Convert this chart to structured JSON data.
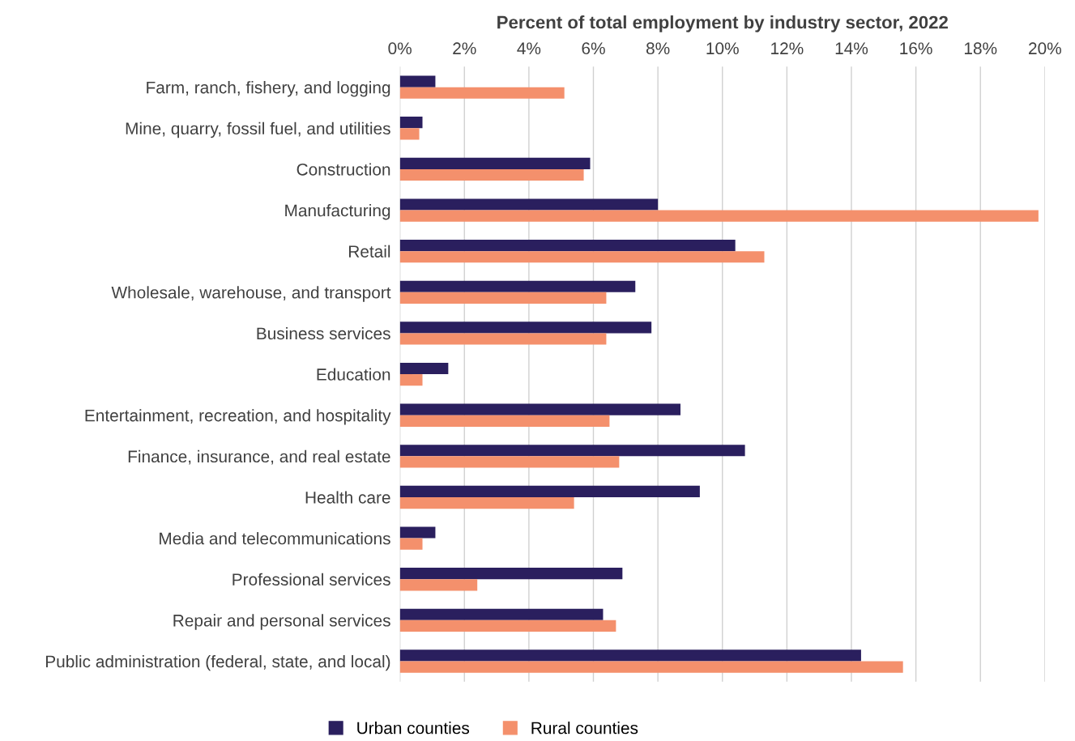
{
  "chart_data": {
    "type": "bar",
    "orientation": "horizontal",
    "xlabel": "Percent of total employment by industry sector, 2022",
    "categories": [
      "Farm, ranch, fishery, and logging",
      "Mine, quarry, fossil fuel, and utilities",
      "Construction",
      "Manufacturing",
      "Retail",
      "Wholesale, warehouse, and transport",
      "Business services",
      "Education",
      "Entertainment, recreation, and hospitality",
      "Finance, insurance, and real estate",
      "Health care",
      "Media and telecommunications",
      "Professional services",
      "Repair and personal services",
      "Public administration (federal, state, and local)"
    ],
    "series": [
      {
        "name": "Urban counties",
        "color": "#2a1f5e",
        "values": [
          1.1,
          0.7,
          5.9,
          8.0,
          10.4,
          7.3,
          7.8,
          1.5,
          8.7,
          10.7,
          9.3,
          1.1,
          6.9,
          6.3,
          14.3
        ]
      },
      {
        "name": "Rural counties",
        "color": "#f4906c",
        "values": [
          5.1,
          0.6,
          5.7,
          19.8,
          11.3,
          6.4,
          6.4,
          0.7,
          6.5,
          6.8,
          5.4,
          0.7,
          2.4,
          6.7,
          15.6
        ]
      }
    ],
    "xlim": [
      0,
      20
    ],
    "xticks": [
      {
        "value": 0,
        "label": "0%"
      },
      {
        "value": 2,
        "label": "2%"
      },
      {
        "value": 4,
        "label": "4%"
      },
      {
        "value": 6,
        "label": "6%"
      },
      {
        "value": 8,
        "label": "8%"
      },
      {
        "value": 10,
        "label": "10%"
      },
      {
        "value": 12,
        "label": "12%"
      },
      {
        "value": 14,
        "label": "14%"
      },
      {
        "value": 16,
        "label": "16%"
      },
      {
        "value": 18,
        "label": "18%"
      },
      {
        "value": 20,
        "label": "20%"
      }
    ],
    "grid": "x",
    "legend": "bottom"
  }
}
